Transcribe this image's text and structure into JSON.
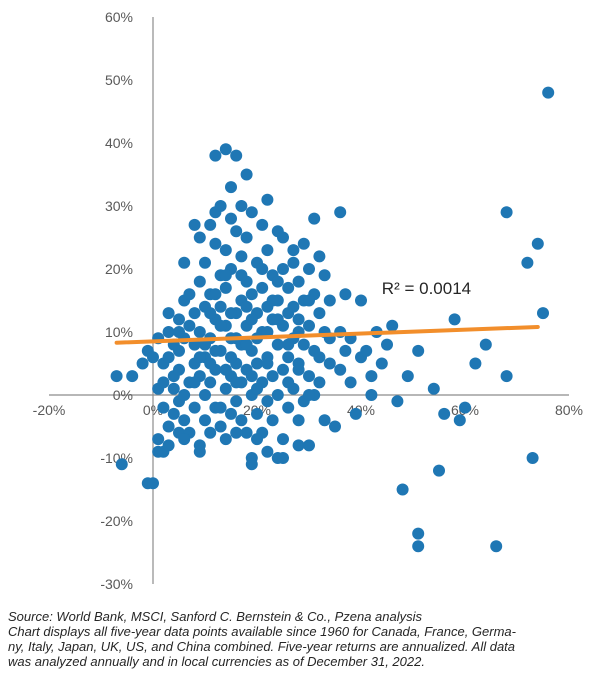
{
  "chart_data": {
    "type": "scatter",
    "title": "",
    "xlabel": "",
    "ylabel": "",
    "xlim": [
      -0.2,
      0.8
    ],
    "ylim": [
      -0.3,
      0.6
    ],
    "x_ticks": [
      "-20%",
      "0%",
      "20%",
      "40%",
      "60%",
      "80%"
    ],
    "y_ticks": [
      "60%",
      "50%",
      "40%",
      "30%",
      "20%",
      "10%",
      "0%",
      "-10%",
      "-20%",
      "-30%"
    ],
    "grid": false,
    "point_color": "#1f77b4",
    "trendline": {
      "x": [
        -0.07,
        0.74
      ],
      "y": [
        0.083,
        0.108
      ],
      "color": "#f28e2b"
    },
    "annotation": "R² = 0.0014",
    "points": [
      [
        -0.07,
        0.03
      ],
      [
        -0.06,
        -0.11
      ],
      [
        -0.04,
        0.03
      ],
      [
        -0.02,
        0.05
      ],
      [
        -0.01,
        -0.14
      ],
      [
        -0.01,
        0.07
      ],
      [
        0.0,
        -0.14
      ],
      [
        0.0,
        0.06
      ],
      [
        0.01,
        0.01
      ],
      [
        0.01,
        -0.09
      ],
      [
        0.01,
        -0.07
      ],
      [
        0.01,
        0.09
      ],
      [
        0.02,
        0.05
      ],
      [
        0.02,
        -0.02
      ],
      [
        0.02,
        -0.09
      ],
      [
        0.02,
        0.02
      ],
      [
        0.03,
        0.06
      ],
      [
        0.03,
        0.1
      ],
      [
        0.03,
        -0.05
      ],
      [
        0.04,
        0.03
      ],
      [
        0.04,
        0.08
      ],
      [
        0.04,
        0.01
      ],
      [
        0.04,
        -0.03
      ],
      [
        0.05,
        0.12
      ],
      [
        0.05,
        0.04
      ],
      [
        0.05,
        -0.06
      ],
      [
        0.05,
        0.07
      ],
      [
        0.05,
        -0.01
      ],
      [
        0.06,
        0.15
      ],
      [
        0.06,
        0.0
      ],
      [
        0.06,
        0.09
      ],
      [
        0.06,
        -0.04
      ],
      [
        0.07,
        0.02
      ],
      [
        0.07,
        0.11
      ],
      [
        0.07,
        -0.06
      ],
      [
        0.08,
        0.05
      ],
      [
        0.08,
        0.13
      ],
      [
        0.08,
        -0.02
      ],
      [
        0.08,
        0.08
      ],
      [
        0.09,
        0.18
      ],
      [
        0.09,
        0.03
      ],
      [
        0.09,
        -0.08
      ],
      [
        0.09,
        0.1
      ],
      [
        0.1,
        0.21
      ],
      [
        0.1,
        0.06
      ],
      [
        0.1,
        -0.04
      ],
      [
        0.1,
        0.14
      ],
      [
        0.1,
        0.0
      ],
      [
        0.11,
        0.27
      ],
      [
        0.11,
        0.16
      ],
      [
        0.11,
        0.09
      ],
      [
        0.11,
        0.02
      ],
      [
        0.11,
        -0.06
      ],
      [
        0.12,
        0.24
      ],
      [
        0.12,
        0.12
      ],
      [
        0.12,
        0.04
      ],
      [
        0.12,
        -0.02
      ],
      [
        0.12,
        0.29
      ],
      [
        0.13,
        0.19
      ],
      [
        0.13,
        0.07
      ],
      [
        0.13,
        0.14
      ],
      [
        0.13,
        -0.05
      ],
      [
        0.14,
        0.23
      ],
      [
        0.14,
        0.01
      ],
      [
        0.14,
        0.11
      ],
      [
        0.14,
        0.17
      ],
      [
        0.15,
        0.28
      ],
      [
        0.15,
        0.09
      ],
      [
        0.15,
        0.03
      ],
      [
        0.15,
        -0.03
      ],
      [
        0.15,
        0.2
      ],
      [
        0.16,
        0.26
      ],
      [
        0.16,
        0.13
      ],
      [
        0.16,
        0.05
      ],
      [
        0.16,
        -0.01
      ],
      [
        0.16,
        0.38
      ],
      [
        0.17,
        0.22
      ],
      [
        0.17,
        0.15
      ],
      [
        0.17,
        0.08
      ],
      [
        0.17,
        0.02
      ],
      [
        0.18,
        0.25
      ],
      [
        0.18,
        0.18
      ],
      [
        0.18,
        0.11
      ],
      [
        0.18,
        0.04
      ],
      [
        0.18,
        -0.06
      ],
      [
        0.19,
        0.29
      ],
      [
        0.19,
        0.16
      ],
      [
        0.19,
        0.07
      ],
      [
        0.19,
        0.0
      ],
      [
        0.19,
        -0.1
      ],
      [
        0.2,
        0.21
      ],
      [
        0.2,
        0.13
      ],
      [
        0.2,
        0.05
      ],
      [
        0.2,
        -0.03
      ],
      [
        0.21,
        0.27
      ],
      [
        0.21,
        0.17
      ],
      [
        0.21,
        0.1
      ],
      [
        0.21,
        0.02
      ],
      [
        0.21,
        -0.06
      ],
      [
        0.22,
        0.23
      ],
      [
        0.22,
        0.14
      ],
      [
        0.22,
        0.06
      ],
      [
        0.22,
        -0.01
      ],
      [
        0.22,
        0.31
      ],
      [
        0.23,
        0.19
      ],
      [
        0.23,
        0.12
      ],
      [
        0.23,
        0.03
      ],
      [
        0.23,
        -0.04
      ],
      [
        0.24,
        0.26
      ],
      [
        0.24,
        0.15
      ],
      [
        0.24,
        0.08
      ],
      [
        0.24,
        0.0
      ],
      [
        0.24,
        -0.1
      ],
      [
        0.25,
        0.2
      ],
      [
        0.25,
        0.11
      ],
      [
        0.25,
        0.04
      ],
      [
        0.25,
        -0.07
      ],
      [
        0.26,
        0.17
      ],
      [
        0.26,
        0.13
      ],
      [
        0.26,
        0.06
      ],
      [
        0.26,
        -0.02
      ],
      [
        0.27,
        0.21
      ],
      [
        0.27,
        0.14
      ],
      [
        0.27,
        0.09
      ],
      [
        0.27,
        0.01
      ],
      [
        0.28,
        0.18
      ],
      [
        0.28,
        0.12
      ],
      [
        0.28,
        0.05
      ],
      [
        0.28,
        -0.04
      ],
      [
        0.29,
        0.24
      ],
      [
        0.29,
        0.15
      ],
      [
        0.29,
        0.08
      ],
      [
        0.29,
        -0.01
      ],
      [
        0.3,
        0.2
      ],
      [
        0.3,
        0.11
      ],
      [
        0.3,
        0.03
      ],
      [
        0.3,
        -0.08
      ],
      [
        0.31,
        0.28
      ],
      [
        0.31,
        0.16
      ],
      [
        0.31,
        0.07
      ],
      [
        0.31,
        0.0
      ],
      [
        0.32,
        0.22
      ],
      [
        0.32,
        0.13
      ],
      [
        0.32,
        0.06
      ],
      [
        0.33,
        0.19
      ],
      [
        0.33,
        0.1
      ],
      [
        0.33,
        -0.04
      ],
      [
        0.34,
        0.15
      ],
      [
        0.34,
        0.09
      ],
      [
        0.35,
        -0.05
      ],
      [
        0.36,
        0.1
      ],
      [
        0.36,
        0.29
      ],
      [
        0.37,
        0.16
      ],
      [
        0.38,
        0.09
      ],
      [
        0.38,
        0.02
      ],
      [
        0.4,
        0.15
      ],
      [
        0.4,
        0.06
      ],
      [
        0.41,
        0.07
      ],
      [
        0.42,
        0.03
      ],
      [
        0.43,
        0.1
      ],
      [
        0.44,
        0.05
      ],
      [
        0.45,
        0.08
      ],
      [
        0.46,
        0.11
      ],
      [
        0.47,
        -0.01
      ],
      [
        0.49,
        0.03
      ],
      [
        0.51,
        0.07
      ],
      [
        0.54,
        0.01
      ],
      [
        0.56,
        -0.03
      ],
      [
        0.58,
        0.12
      ],
      [
        0.59,
        -0.04
      ],
      [
        0.6,
        -0.02
      ],
      [
        0.62,
        0.05
      ],
      [
        0.64,
        0.08
      ],
      [
        0.13,
        0.3
      ],
      [
        0.15,
        0.33
      ],
      [
        0.17,
        0.3
      ],
      [
        0.08,
        0.27
      ],
      [
        0.09,
        0.25
      ],
      [
        0.14,
        0.39
      ],
      [
        0.12,
        0.38
      ],
      [
        0.18,
        0.35
      ],
      [
        0.14,
        0.19
      ],
      [
        0.11,
        0.05
      ],
      [
        0.13,
        -0.02
      ],
      [
        0.16,
        0.09
      ],
      [
        0.19,
        0.12
      ],
      [
        0.12,
        0.16
      ],
      [
        0.15,
        0.13
      ],
      [
        0.17,
        0.19
      ],
      [
        0.18,
        0.08
      ],
      [
        0.2,
        0.01
      ],
      [
        0.22,
        0.05
      ],
      [
        0.24,
        0.12
      ],
      [
        0.26,
        0.02
      ],
      [
        0.28,
        0.1
      ],
      [
        0.3,
        0.15
      ],
      [
        0.27,
        0.23
      ],
      [
        0.25,
        0.25
      ],
      [
        0.23,
        0.15
      ],
      [
        0.21,
        0.2
      ],
      [
        0.19,
        0.03
      ],
      [
        0.17,
        -0.04
      ],
      [
        0.15,
        0.06
      ],
      [
        0.13,
        0.11
      ],
      [
        0.11,
        0.13
      ],
      [
        0.09,
        0.06
      ],
      [
        0.07,
        0.16
      ],
      [
        0.05,
        0.1
      ],
      [
        0.03,
        0.13
      ],
      [
        0.06,
        0.21
      ],
      [
        0.08,
        0.02
      ],
      [
        0.1,
        0.08
      ],
      [
        0.12,
        0.07
      ],
      [
        0.14,
        0.04
      ],
      [
        0.16,
        0.02
      ],
      [
        0.18,
        0.14
      ],
      [
        0.2,
        0.09
      ],
      [
        0.22,
        0.1
      ],
      [
        0.24,
        0.18
      ],
      [
        0.26,
        0.08
      ],
      [
        0.28,
        0.04
      ],
      [
        0.3,
        0.0
      ],
      [
        0.32,
        0.02
      ],
      [
        0.34,
        0.05
      ],
      [
        0.36,
        0.04
      ],
      [
        0.37,
        0.07
      ],
      [
        0.39,
        -0.03
      ],
      [
        0.42,
        0.0
      ],
      [
        0.48,
        -0.15
      ],
      [
        0.51,
        -0.22
      ],
      [
        0.51,
        -0.24
      ],
      [
        0.55,
        -0.12
      ],
      [
        0.66,
        -0.24
      ],
      [
        0.73,
        -0.1
      ],
      [
        0.68,
        0.03
      ],
      [
        0.74,
        0.24
      ],
      [
        0.72,
        0.21
      ],
      [
        0.75,
        0.13
      ],
      [
        0.68,
        0.29
      ],
      [
        0.76,
        0.48
      ],
      [
        0.19,
        -0.11
      ],
      [
        0.22,
        -0.09
      ],
      [
        0.25,
        -0.1
      ],
      [
        0.28,
        -0.08
      ],
      [
        0.09,
        -0.09
      ],
      [
        0.06,
        -0.07
      ],
      [
        0.14,
        -0.07
      ],
      [
        0.16,
        -0.06
      ],
      [
        0.03,
        -0.08
      ],
      [
        0.2,
        -0.07
      ]
    ]
  },
  "source_note": {
    "line1": "Source: World Bank, MSCI, Sanford C. Bernstein & Co., Pzena analysis",
    "line2": "Chart displays all five-year data points available since 1960 for Canada, France, Germa-",
    "line3": "ny, Italy, Japan, UK, US, and China combined. Five-year returns are annualized. All data",
    "line4": "was analyzed annually and in local currencies as of December 31, 2022."
  }
}
